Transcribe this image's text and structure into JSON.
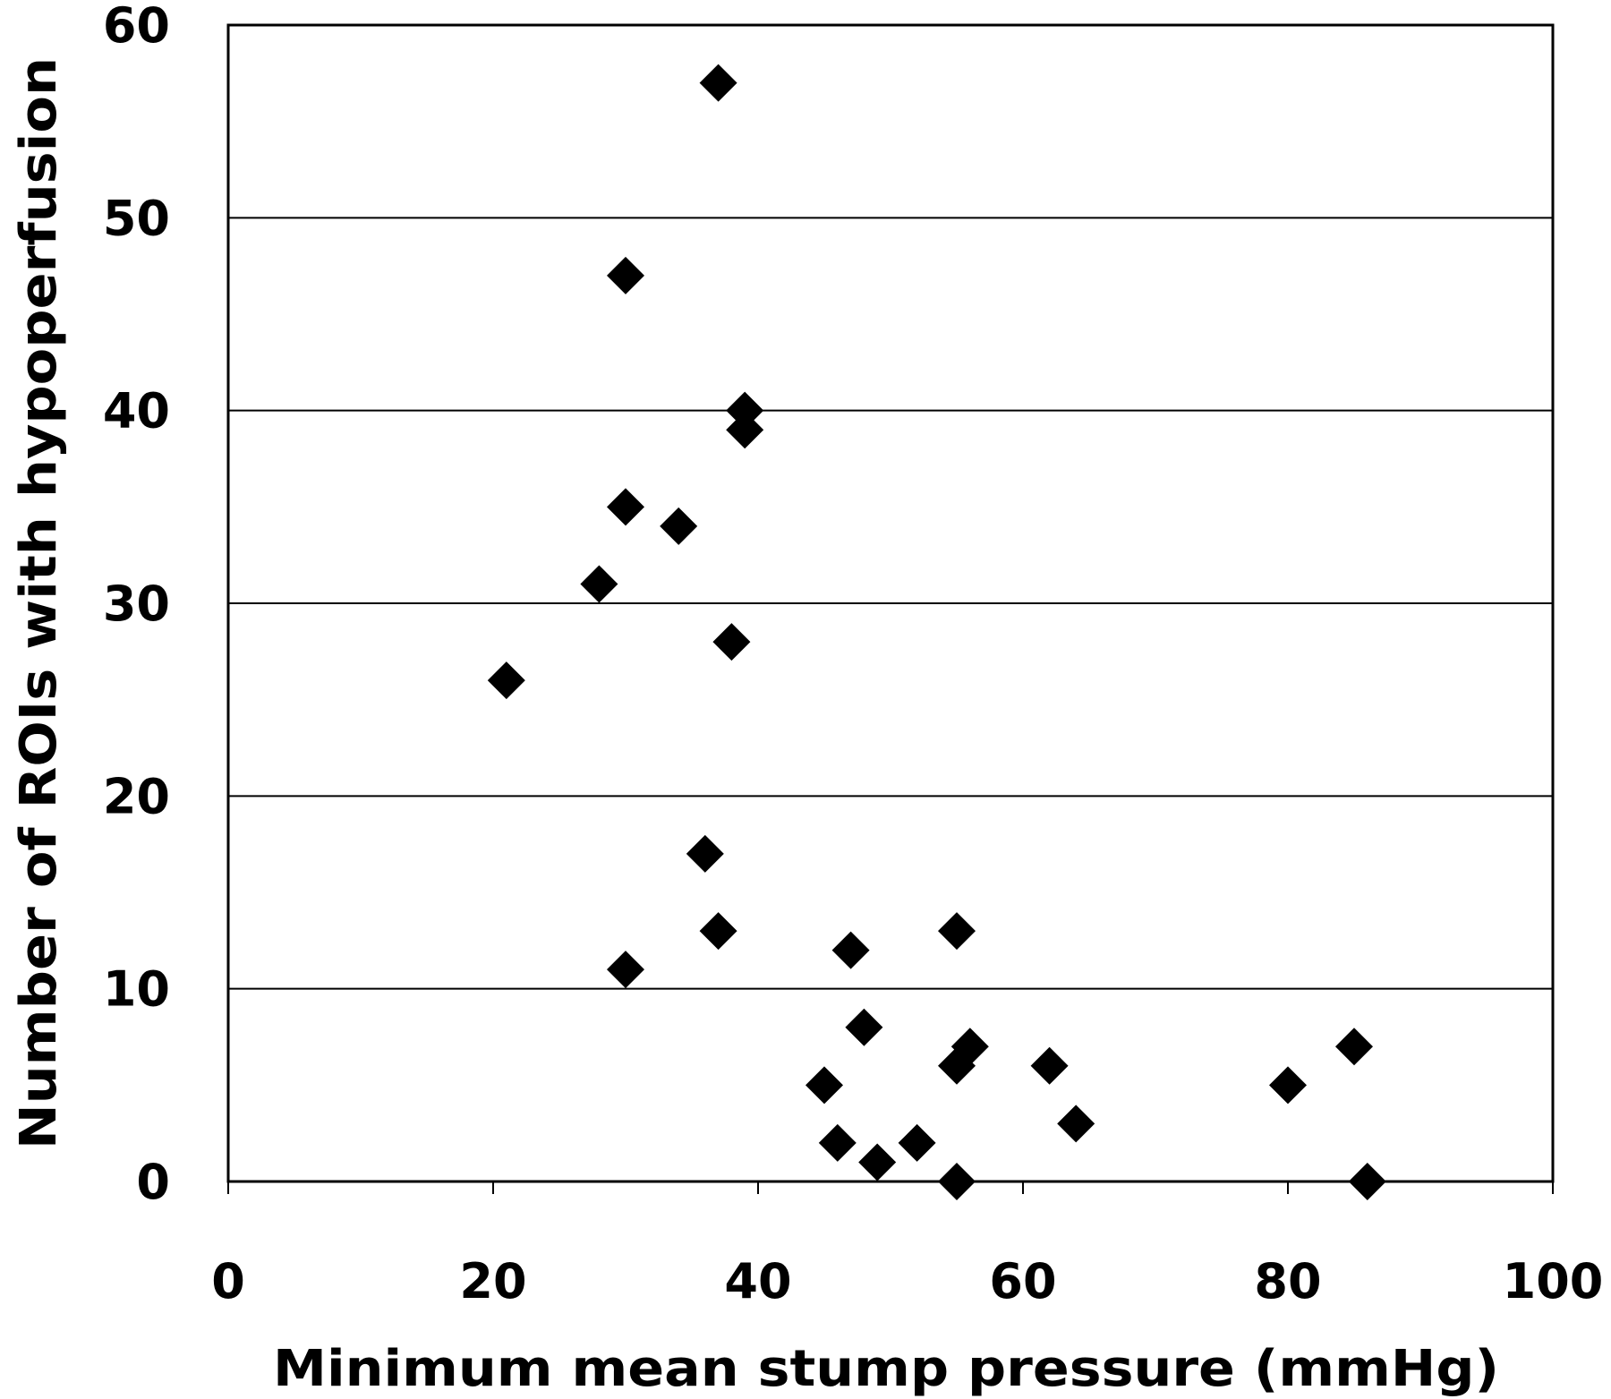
{
  "chart_data": {
    "type": "scatter",
    "title": "",
    "xlabel": "Minimum mean stump pressure (mmHg)",
    "ylabel": "Number of ROIs with hypoperfusion",
    "xlim": [
      0,
      100
    ],
    "ylim": [
      0,
      60
    ],
    "xticks": [
      0,
      20,
      40,
      60,
      80,
      100
    ],
    "yticks": [
      0,
      10,
      20,
      30,
      40,
      50,
      60
    ],
    "xtick_labels": [
      "0",
      "20",
      "40",
      "60",
      "80",
      "100"
    ],
    "ytick_labels": [
      "0",
      "10",
      "20",
      "30",
      "40",
      "50",
      "60"
    ],
    "grid": "horizontal",
    "marker": "diamond",
    "marker_color": "#000000",
    "points": [
      {
        "x": 37,
        "y": 57
      },
      {
        "x": 30,
        "y": 47
      },
      {
        "x": 39,
        "y": 40
      },
      {
        "x": 39,
        "y": 39
      },
      {
        "x": 30,
        "y": 35
      },
      {
        "x": 34,
        "y": 34
      },
      {
        "x": 28,
        "y": 31
      },
      {
        "x": 38,
        "y": 28
      },
      {
        "x": 21,
        "y": 26
      },
      {
        "x": 36,
        "y": 17
      },
      {
        "x": 37,
        "y": 13
      },
      {
        "x": 55,
        "y": 13
      },
      {
        "x": 47,
        "y": 12
      },
      {
        "x": 30,
        "y": 11
      },
      {
        "x": 48,
        "y": 8
      },
      {
        "x": 56,
        "y": 7
      },
      {
        "x": 85,
        "y": 7
      },
      {
        "x": 55,
        "y": 6
      },
      {
        "x": 62,
        "y": 6
      },
      {
        "x": 45,
        "y": 5
      },
      {
        "x": 80,
        "y": 5
      },
      {
        "x": 64,
        "y": 3
      },
      {
        "x": 46,
        "y": 2
      },
      {
        "x": 52,
        "y": 2
      },
      {
        "x": 49,
        "y": 1
      },
      {
        "x": 55,
        "y": 0
      },
      {
        "x": 86,
        "y": 0
      }
    ]
  }
}
